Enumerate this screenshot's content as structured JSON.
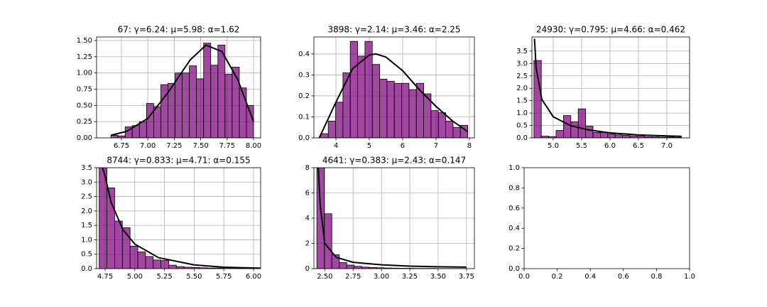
{
  "chart_data": [
    {
      "type": "histogram",
      "title": "67: γ=6.24: μ=5.98: α=1.62",
      "color": "#800080",
      "grid": true,
      "bins": [
        6.65,
        6.7175,
        6.785,
        6.8525,
        6.92,
        6.9875,
        7.055,
        7.1225,
        7.19,
        7.2575,
        7.325,
        7.3925,
        7.46,
        7.5275,
        7.595,
        7.6625,
        7.73,
        7.7975,
        7.865,
        7.9325,
        8.0
      ],
      "values": [
        0.04,
        0.03,
        0.17,
        0.19,
        0.25,
        0.53,
        0.48,
        0.82,
        0.84,
        1.0,
        1.0,
        1.11,
        0.91,
        1.46,
        1.12,
        1.43,
        0.98,
        1.09,
        0.77,
        0.5
      ],
      "line": {
        "color": "#000000",
        "x": [
          6.65,
          6.8,
          7.0,
          7.2,
          7.4,
          7.55,
          7.7,
          7.85,
          8.0
        ],
        "values": [
          0.04,
          0.1,
          0.3,
          0.72,
          1.2,
          1.43,
          1.33,
          0.9,
          0.25
        ]
      },
      "xlim": [
        6.515,
        8.067
      ],
      "ylim": [
        0,
        1.555
      ],
      "xticks": [
        {
          "value": 6.75,
          "label": "6.75"
        },
        {
          "value": 7,
          "label": "7.00"
        },
        {
          "value": 7.25,
          "label": "7.25"
        },
        {
          "value": 7.5,
          "label": "7.50"
        },
        {
          "value": 7.75,
          "label": "7.75"
        },
        {
          "value": 8,
          "label": "8.00"
        }
      ],
      "yticks": [
        {
          "value": 0,
          "label": "0.00"
        },
        {
          "value": 0.25,
          "label": "0.25"
        },
        {
          "value": 0.5,
          "label": "0.50"
        },
        {
          "value": 0.75,
          "label": "0.75"
        },
        {
          "value": 1,
          "label": "1.00"
        },
        {
          "value": 1.25,
          "label": "1.25"
        },
        {
          "value": 1.5,
          "label": "1.50"
        }
      ]
    },
    {
      "type": "histogram",
      "title": "3898: γ=2.14: μ=3.46: α=2.25",
      "color": "#800080",
      "grid": true,
      "bins": [
        3.55,
        3.77,
        3.99,
        4.21,
        4.43,
        4.65,
        4.87,
        5.09,
        5.31,
        5.53,
        5.75,
        5.97,
        6.19,
        6.41,
        6.63,
        6.85,
        7.07,
        7.29,
        7.51,
        7.73,
        7.95
      ],
      "values": [
        0.02,
        0.08,
        0.17,
        0.31,
        0.46,
        0.39,
        0.46,
        0.35,
        0.28,
        0.27,
        0.26,
        0.26,
        0.23,
        0.26,
        0.21,
        0.13,
        0.12,
        0.08,
        0.05,
        0.06
      ],
      "line": {
        "color": "#000000",
        "x": [
          3.5,
          4.0,
          4.5,
          5.0,
          5.2,
          5.5,
          6.0,
          6.5,
          7.0,
          7.5,
          7.95
        ],
        "values": [
          0.0,
          0.17,
          0.33,
          0.395,
          0.4,
          0.385,
          0.32,
          0.23,
          0.15,
          0.08,
          0.03
        ]
      },
      "xlim": [
        3.34,
        8.15
      ],
      "ylim": [
        0,
        0.481
      ],
      "xticks": [
        4,
        5,
        6,
        7,
        8
      ],
      "yticks": [
        {
          "value": 0,
          "label": "0.0"
        },
        {
          "value": 0.1,
          "label": "0.1"
        },
        {
          "value": 0.2,
          "label": "0.2"
        },
        {
          "value": 0.3,
          "label": "0.3"
        },
        {
          "value": 0.4,
          "label": "0.4"
        }
      ]
    },
    {
      "type": "histogram",
      "title": "24930: γ=0.795: μ=4.66: α=0.462",
      "color": "#800080",
      "grid": true,
      "bins": [
        4.66,
        4.79,
        4.92,
        5.05,
        5.18,
        5.31,
        5.44,
        5.57,
        5.7,
        5.83,
        5.96,
        6.09,
        6.22,
        6.35,
        6.48,
        6.61,
        6.74,
        6.87,
        7.0,
        7.13,
        7.26
      ],
      "values": [
        3.12,
        0.07,
        0.05,
        0.3,
        0.9,
        0.65,
        1.17,
        0.47,
        0.22,
        0.22,
        0.15,
        0.12,
        0.1,
        0.08,
        0.07,
        0.05,
        0.04,
        0.03,
        0.03,
        0.02
      ],
      "line": {
        "color": "#000000",
        "x": [
          4.67,
          4.7,
          4.8,
          5.0,
          5.3,
          5.6,
          6.0,
          6.5,
          7.0,
          7.26
        ],
        "values": [
          4.0,
          2.8,
          1.55,
          0.85,
          0.5,
          0.33,
          0.2,
          0.12,
          0.08,
          0.06
        ]
      },
      "xlim": [
        4.625,
        7.4
      ],
      "ylim": [
        0,
        4.07
      ],
      "xticks": [
        {
          "value": 5,
          "label": "5.0"
        },
        {
          "value": 5.5,
          "label": "5.5"
        },
        {
          "value": 6,
          "label": "6.0"
        },
        {
          "value": 6.5,
          "label": "6.5"
        },
        {
          "value": 7,
          "label": "7.0"
        }
      ],
      "yticks": [
        {
          "value": 0,
          "label": "0.0"
        },
        {
          "value": 0.5,
          "label": "0.5"
        },
        {
          "value": 1,
          "label": "1.0"
        },
        {
          "value": 1.5,
          "label": "1.5"
        },
        {
          "value": 2,
          "label": "2.0"
        },
        {
          "value": 2.5,
          "label": "2.5"
        },
        {
          "value": 3,
          "label": "3.0"
        },
        {
          "value": 3.5,
          "label": "3.5"
        }
      ]
    },
    {
      "type": "histogram",
      "title": "8744: γ=0.833: μ=4.71: α=0.155",
      "color": "#800080",
      "grid": true,
      "bins": [
        4.7,
        4.765,
        4.83,
        4.895,
        4.96,
        5.025,
        5.09,
        5.155,
        5.22,
        5.285,
        5.35,
        5.415,
        5.48,
        5.545,
        5.61,
        5.675,
        5.74,
        5.805,
        5.87,
        5.935,
        6.0
      ],
      "values": [
        3.6,
        2.8,
        1.65,
        1.42,
        0.78,
        0.58,
        0.42,
        0.3,
        0.28,
        0.12,
        0.07,
        0.05,
        0.04,
        0.03,
        0.02,
        0.02,
        0.01,
        0.01,
        0.01,
        0.01
      ],
      "line": {
        "color": "#000000",
        "x": [
          4.72,
          4.75,
          4.8,
          4.9,
          5.0,
          5.2,
          5.5,
          5.75,
          6.1
        ],
        "values": [
          3.6,
          3.2,
          2.3,
          1.35,
          0.85,
          0.38,
          0.13,
          0.05,
          0.01
        ]
      },
      "xlim": [
        4.678,
        6.06
      ],
      "ylim": [
        0,
        3.5
      ],
      "xticks": [
        {
          "value": 4.75,
          "label": "4.75"
        },
        {
          "value": 5,
          "label": "5.00"
        },
        {
          "value": 5.25,
          "label": "5.25"
        },
        {
          "value": 5.5,
          "label": "5.50"
        },
        {
          "value": 5.75,
          "label": "5.75"
        },
        {
          "value": 6,
          "label": "6.00"
        }
      ],
      "yticks": [
        {
          "value": 0,
          "label": "0.0"
        },
        {
          "value": 0.5,
          "label": "0.5"
        },
        {
          "value": 1,
          "label": "1.0"
        },
        {
          "value": 1.5,
          "label": "1.5"
        },
        {
          "value": 2,
          "label": "2.0"
        },
        {
          "value": 2.5,
          "label": "2.5"
        },
        {
          "value": 3,
          "label": "3.0"
        },
        {
          "value": 3.5,
          "label": "3.5"
        }
      ]
    },
    {
      "type": "histogram",
      "title": "4641: γ=0.383: μ=2.43: α=0.147",
      "color": "#800080",
      "grid": true,
      "bins": [
        2.43,
        2.496,
        2.562,
        2.628,
        2.694,
        2.76,
        2.826,
        2.892,
        2.958,
        3.024,
        3.09,
        3.156,
        3.222,
        3.288,
        3.354,
        3.42,
        3.486,
        3.552,
        3.618,
        3.684,
        3.75
      ],
      "values": [
        8.6,
        4.35,
        1.1,
        0.48,
        0.28,
        0.18,
        0.12,
        0.09,
        0.07,
        0.05,
        0.04,
        0.03,
        0.03,
        0.02,
        0.02,
        0.02,
        0.01,
        0.01,
        0.01,
        0.01
      ],
      "line": {
        "color": "#000000",
        "x": [
          2.44,
          2.46,
          2.5,
          2.6,
          2.75,
          3.0,
          3.25,
          3.5,
          3.75
        ],
        "values": [
          8.5,
          5.0,
          2.0,
          0.9,
          0.5,
          0.3,
          0.2,
          0.15,
          0.12
        ]
      },
      "xlim": [
        2.404,
        3.82
      ],
      "ylim": [
        0,
        8
      ],
      "xticks": [
        {
          "value": 2.5,
          "label": "2.50"
        },
        {
          "value": 2.75,
          "label": "2.75"
        },
        {
          "value": 3,
          "label": "3.00"
        },
        {
          "value": 3.25,
          "label": "3.25"
        },
        {
          "value": 3.5,
          "label": "3.50"
        },
        {
          "value": 3.75,
          "label": "3.75"
        }
      ],
      "yticks": [
        0,
        2,
        4,
        6,
        8
      ]
    },
    {
      "type": "axes",
      "grid": false,
      "xlim": [
        0,
        1
      ],
      "ylim": [
        0,
        1
      ],
      "xticks": [
        {
          "value": 0,
          "label": "0.0"
        },
        {
          "value": 0.2,
          "label": "0.2"
        },
        {
          "value": 0.4,
          "label": "0.4"
        },
        {
          "value": 0.6,
          "label": "0.6"
        },
        {
          "value": 0.8,
          "label": "0.8"
        },
        {
          "value": 1,
          "label": "1.0"
        }
      ],
      "yticks": [
        {
          "value": 0,
          "label": "0.0"
        },
        {
          "value": 0.2,
          "label": "0.2"
        },
        {
          "value": 0.4,
          "label": "0.4"
        },
        {
          "value": 0.6,
          "label": "0.6"
        },
        {
          "value": 0.8,
          "label": "0.8"
        },
        {
          "value": 1,
          "label": "1.0"
        }
      ]
    }
  ]
}
